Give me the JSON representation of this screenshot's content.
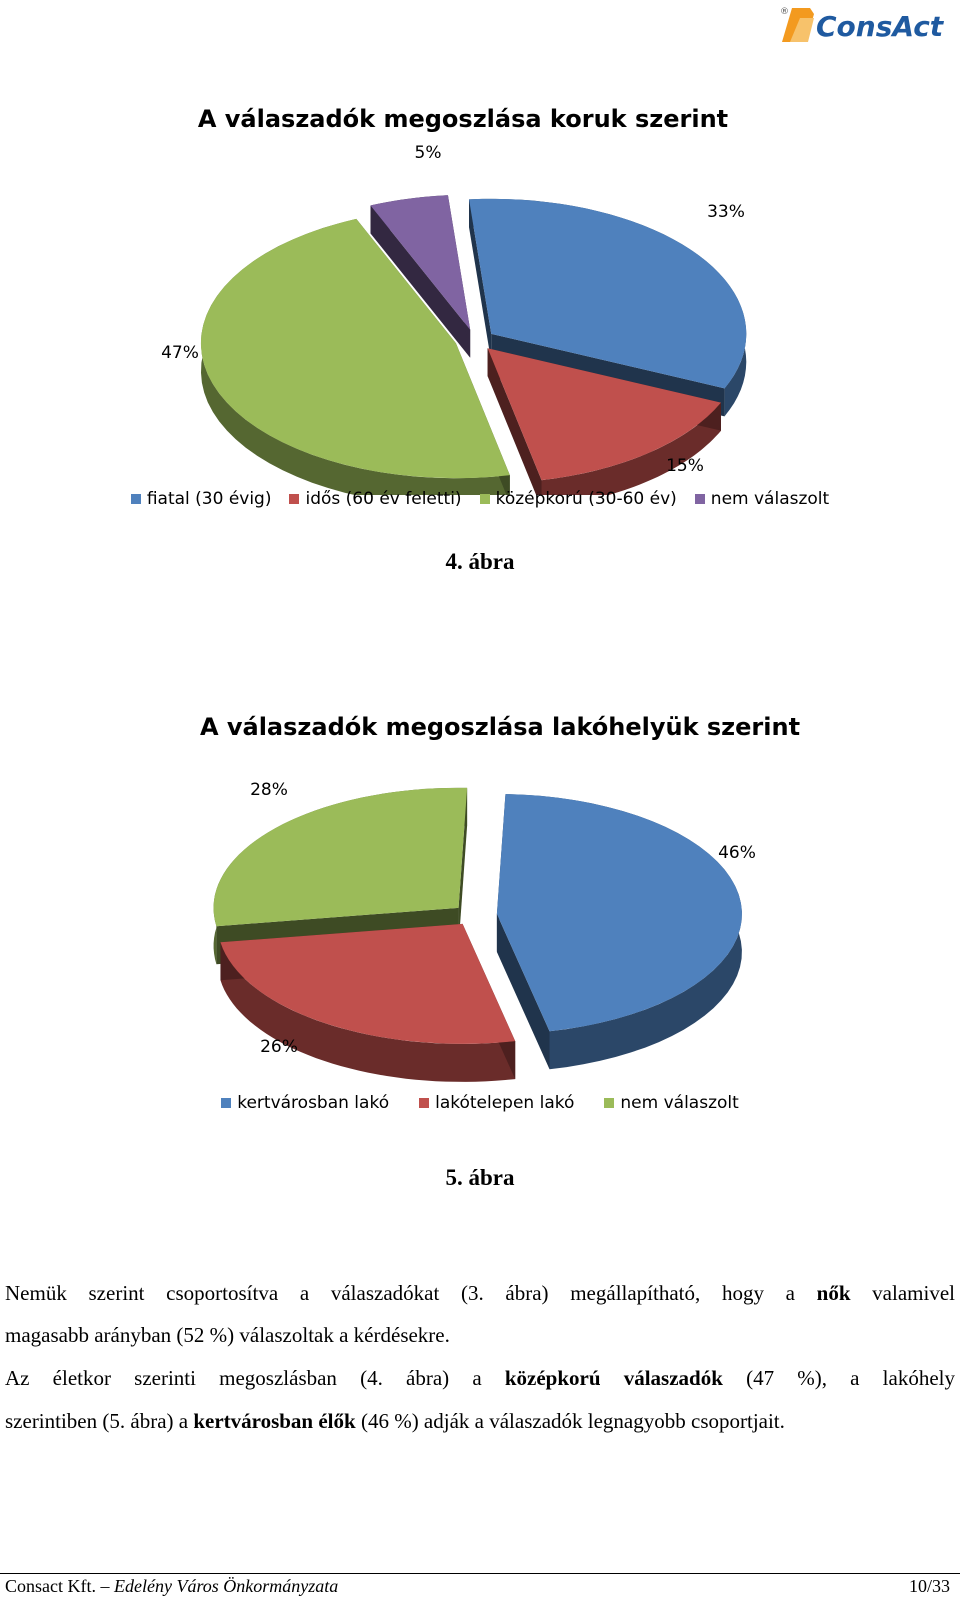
{
  "header": {
    "logo_text": "ConsAct",
    "logo_mark": "®"
  },
  "figures": [
    {
      "caption": "4. ábra"
    },
    {
      "caption": "5. ábra"
    }
  ],
  "chart_data": [
    {
      "type": "pie",
      "title": "A válaszadók megoszlása koruk szerint",
      "categories": [
        "fiatal (30 évig)",
        "idős (60 év feletti)",
        "középkorú (30-60 év)",
        "nem válaszolt"
      ],
      "values": [
        33,
        15,
        47,
        5
      ],
      "labels": [
        "33%",
        "15%",
        "47%",
        "5%"
      ],
      "colors": [
        "#4F81BD",
        "#C0504D",
        "#9BBB59",
        "#8064A2"
      ],
      "legend": "bottom"
    },
    {
      "type": "pie",
      "title": "A válaszadók megoszlása lakóhelyük szerint",
      "categories": [
        "kertvárosban lakó",
        "lakótelepen lakó",
        "nem válaszolt"
      ],
      "values": [
        46,
        26,
        28
      ],
      "labels": [
        "46%",
        "26%",
        "28%"
      ],
      "colors": [
        "#4F81BD",
        "#C0504D",
        "#9BBB59"
      ],
      "legend": "bottom"
    }
  ],
  "body": {
    "p1a": "Nemük szerint csoportosítva a válaszadókat (3. ábra) megállapítható, hogy a ",
    "p1b": "nők",
    "p1c": " valamivel",
    "p1d": "magasabb arányban (52 %) válaszoltak a kérdésekre.",
    "p2a": "Az életkor szerinti megoszlásban (4. ábra) a ",
    "p2b": "középkorú válaszadók",
    "p2c": " (47 %), a lakóhely",
    "p2d": "szerintiben (5. ábra) a ",
    "p2e": "kertvárosban élők",
    "p2f": " (46 %) adják a válaszadók legnagyobb csoportjait."
  },
  "footer": {
    "company": "Consact Kft.",
    "dash": " – ",
    "doc": "Edelény Város Önkormányzata",
    "page": "10/33"
  }
}
